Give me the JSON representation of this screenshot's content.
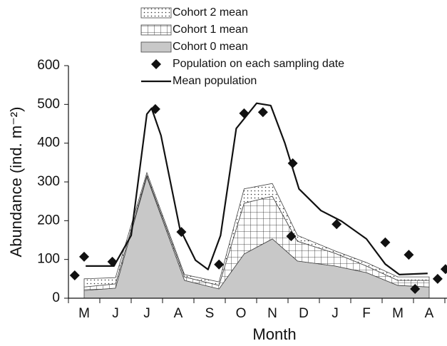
{
  "chart_data": {
    "type": "area",
    "x_label": "Month",
    "y_label": "Abundance (ind. m⁻²)",
    "categories": [
      "M",
      "J",
      "J",
      "A",
      "S",
      "O",
      "N",
      "D",
      "J",
      "F",
      "M",
      "A"
    ],
    "xlim": [
      -0.5,
      11.5
    ],
    "ylim": [
      0,
      600
    ],
    "yticks": [
      0,
      100,
      200,
      300,
      400,
      500,
      600
    ],
    "stacked": true,
    "series": [
      {
        "name": "Cohort 0 mean",
        "type": "area",
        "color": "#c8c8c8",
        "x": [
          0,
          1,
          2,
          3.2,
          4.3,
          5.1,
          6,
          6.8,
          8,
          9,
          10,
          11
        ],
        "values": [
          20,
          26,
          313,
          46,
          24,
          114,
          153,
          96,
          83,
          66,
          33,
          29
        ]
      },
      {
        "name": "Cohort 1 mean",
        "type": "area",
        "color": "#ffffff",
        "x": [
          0,
          1,
          2,
          3.2,
          4.3,
          5.1,
          6,
          6.8,
          8,
          9,
          10,
          11
        ],
        "values": [
          9,
          11,
          4,
          9,
          9,
          131,
          110,
          51,
          33,
          17,
          13,
          17
        ]
      },
      {
        "name": "Cohort 2 mean",
        "type": "area",
        "color": "#ffffff",
        "x": [
          0,
          1,
          2,
          3.2,
          4.3,
          5.1,
          6,
          6.8,
          8,
          9,
          10,
          11
        ],
        "values": [
          21,
          16,
          7,
          6,
          9,
          37,
          33,
          15,
          6,
          9,
          9,
          9
        ]
      },
      {
        "name": "Population on each sampling date",
        "type": "scatter",
        "color": "#111111",
        "x": [
          -0.3,
          0,
          0.9,
          2.27,
          3.1,
          4.3,
          5.1,
          5.7,
          6.6,
          6.65,
          8.05,
          9.6,
          10.35,
          10.55,
          11.27,
          11.52
        ],
        "values": [
          59,
          107,
          94,
          488,
          171,
          87,
          477,
          480,
          160,
          348,
          191,
          144,
          112,
          24,
          50,
          75
        ]
      },
      {
        "name": "Mean population",
        "type": "line",
        "color": "#111111",
        "x": [
          0.05,
          0.95,
          1.5,
          2,
          2.15,
          2.45,
          3.05,
          3.55,
          3.95,
          4.35,
          4.85,
          5.5,
          5.95,
          6.4,
          6.85,
          7.55,
          8.2,
          9,
          9.6,
          10.05,
          10.95
        ],
        "values": [
          83,
          83,
          162,
          475,
          490,
          420,
          180,
          98,
          74,
          162,
          438,
          503,
          497,
          400,
          282,
          226,
          199,
          153,
          88,
          61,
          64
        ]
      }
    ]
  }
}
